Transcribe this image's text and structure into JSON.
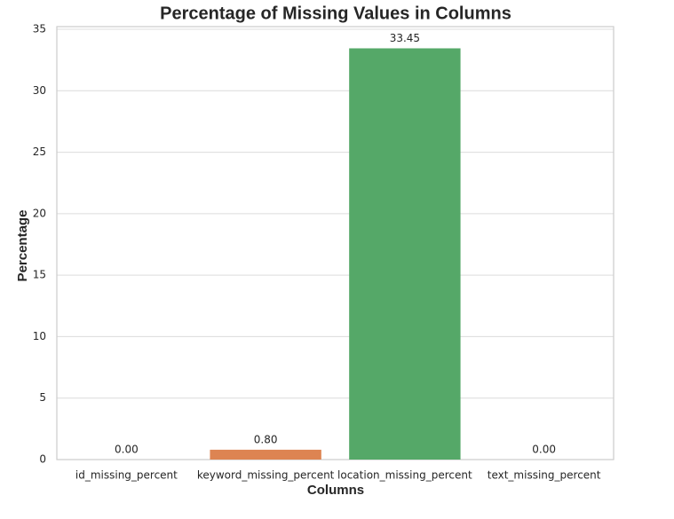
{
  "chart_data": {
    "type": "bar",
    "title": "Percentage of Missing Values in Columns",
    "x_label": "Columns",
    "y_label": "Percentage",
    "categories": [
      "id_missing_percent",
      "keyword_missing_percent",
      "location_missing_percent",
      "text_missing_percent"
    ],
    "values": [
      0,
      0.8,
      33.45,
      0
    ],
    "value_labels": [
      "0.00",
      "0.80",
      "33.45",
      "0.00"
    ],
    "colors": [
      "#4c72b0",
      "#dd8452",
      "#55a868",
      "#c44e52"
    ],
    "ylim": [
      0,
      35
    ],
    "yticks": [
      0,
      5,
      10,
      15,
      20,
      25,
      30,
      35
    ],
    "grid": true
  }
}
